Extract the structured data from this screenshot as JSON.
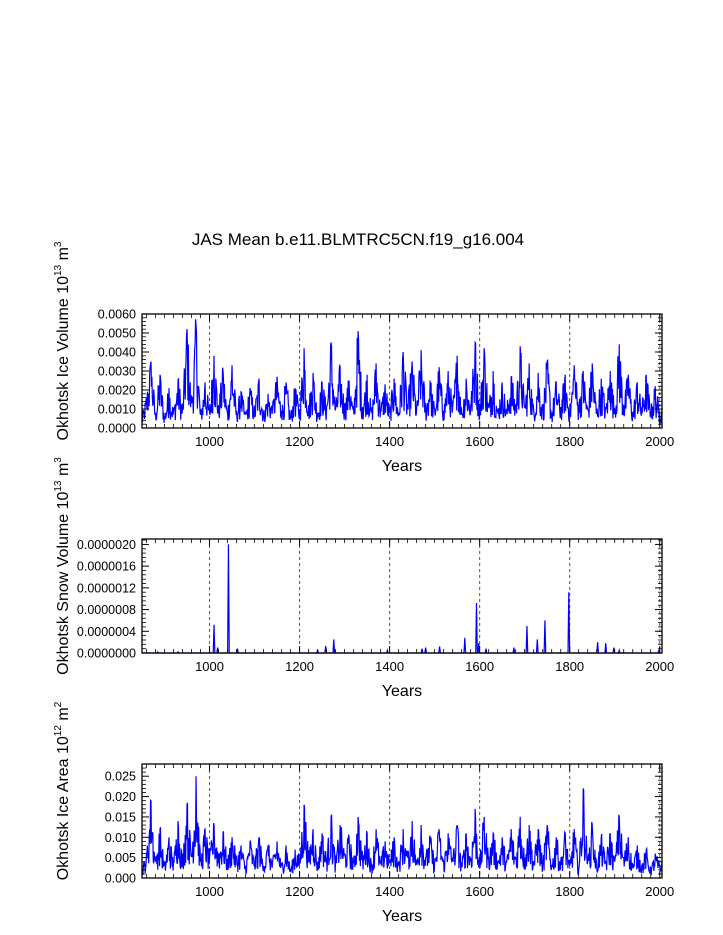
{
  "figure_title": "JAS Mean b.e11.BLMTRC5CN.f19_g16.004",
  "chart_data": [
    {
      "type": "line",
      "title": "JAS Mean b.e11.BLMTRC5CN.f19_g16.004",
      "xlabel": "Years",
      "ylabel": "Okhotsk Ice Volume 10",
      "ylabel_exp": "13",
      "ylabel_unit": "m",
      "ylabel_unit_exp": "3",
      "xlim": [
        850,
        2005
      ],
      "ylim": [
        0,
        0.006
      ],
      "xticks": [
        1000,
        1200,
        1400,
        1600,
        1800,
        2000
      ],
      "xtick_labels": [
        "1000",
        "1200",
        "1400",
        "1600",
        "1800",
        "2000"
      ],
      "yticks": [
        0,
        0.001,
        0.002,
        0.003,
        0.004,
        0.005,
        0.006
      ],
      "ytick_labels": [
        "0.0000",
        "0.0010",
        "0.0020",
        "0.0030",
        "0.0040",
        "0.0050",
        "0.0060"
      ],
      "grid_x": [
        1000,
        1200,
        1400,
        1600,
        1800,
        2000
      ],
      "color": "#0000ff",
      "x": [
        850,
        860,
        870,
        880,
        890,
        900,
        910,
        920,
        930,
        940,
        950,
        960,
        970,
        980,
        990,
        1000,
        1010,
        1020,
        1030,
        1040,
        1050,
        1060,
        1070,
        1080,
        1090,
        1100,
        1110,
        1120,
        1130,
        1140,
        1150,
        1160,
        1170,
        1180,
        1190,
        1200,
        1210,
        1220,
        1230,
        1240,
        1250,
        1260,
        1270,
        1280,
        1290,
        1300,
        1310,
        1320,
        1330,
        1340,
        1350,
        1360,
        1370,
        1380,
        1390,
        1400,
        1410,
        1420,
        1430,
        1440,
        1450,
        1460,
        1470,
        1480,
        1490,
        1500,
        1510,
        1520,
        1530,
        1540,
        1550,
        1560,
        1570,
        1580,
        1590,
        1600,
        1610,
        1620,
        1630,
        1640,
        1650,
        1660,
        1670,
        1680,
        1690,
        1700,
        1710,
        1720,
        1730,
        1740,
        1750,
        1760,
        1770,
        1780,
        1790,
        1800,
        1810,
        1820,
        1830,
        1840,
        1850,
        1860,
        1870,
        1880,
        1890,
        1900,
        1910,
        1920,
        1930,
        1940,
        1950,
        1960,
        1970,
        1980,
        1990,
        2000,
        2005
      ],
      "values": [
        0.0005,
        0.0016,
        0.0035,
        0.0008,
        0.0028,
        0.0006,
        0.0021,
        0.0009,
        0.0025,
        0.0011,
        0.0052,
        0.0013,
        0.0054,
        0.0007,
        0.0024,
        0.001,
        0.0038,
        0.0012,
        0.003,
        0.0008,
        0.0033,
        0.0009,
        0.0019,
        0.0007,
        0.0021,
        0.001,
        0.0026,
        0.0008,
        0.0018,
        0.0011,
        0.0027,
        0.0009,
        0.0024,
        0.0006,
        0.0021,
        0.001,
        0.0042,
        0.0012,
        0.0029,
        0.0008,
        0.0024,
        0.0011,
        0.0045,
        0.001,
        0.0032,
        0.0012,
        0.0025,
        0.0009,
        0.0051,
        0.0011,
        0.0028,
        0.0008,
        0.0034,
        0.001,
        0.0023,
        0.0009,
        0.0026,
        0.0008,
        0.004,
        0.0012,
        0.0035,
        0.001,
        0.0041,
        0.0011,
        0.0025,
        0.001,
        0.0032,
        0.0009,
        0.003,
        0.0011,
        0.0038,
        0.0008,
        0.0026,
        0.0012,
        0.0045,
        0.001,
        0.0042,
        0.0011,
        0.003,
        0.0009,
        0.0024,
        0.001,
        0.0027,
        0.0012,
        0.0043,
        0.0011,
        0.0034,
        0.0009,
        0.0029,
        0.001,
        0.0035,
        0.0008,
        0.0024,
        0.0011,
        0.0028,
        0.0009,
        0.0033,
        0.0012,
        0.003,
        0.001,
        0.0034,
        0.0009,
        0.0026,
        0.0011,
        0.003,
        0.001,
        0.0044,
        0.0012,
        0.0028,
        0.0008,
        0.0024,
        0.0011,
        0.0028,
        0.0009,
        0.0022,
        0.0008,
        0.001
      ]
    },
    {
      "type": "line",
      "xlabel": "Years",
      "ylabel": "Okhotsk Snow Volume 10",
      "ylabel_exp": "13",
      "ylabel_unit": "m",
      "ylabel_unit_exp": "3",
      "xlim": [
        850,
        2005
      ],
      "ylim": [
        0,
        2.1e-06
      ],
      "xticks": [
        1000,
        1200,
        1400,
        1600,
        1800,
        2000
      ],
      "xtick_labels": [
        "1000",
        "1200",
        "1400",
        "1600",
        "1800",
        "2000"
      ],
      "yticks": [
        0,
        4e-07,
        8e-07,
        1.2e-06,
        1.6e-06,
        2e-06
      ],
      "ytick_labels": [
        "0.0000000",
        "0.0000004",
        "0.0000008",
        "0.0000012",
        "0.0000016",
        "0.0000020"
      ],
      "grid_x": [
        1000,
        1200,
        1400,
        1600,
        1800,
        2000
      ],
      "color": "#0000ff",
      "spikes": [
        {
          "x": 885,
          "y": 2e-08
        },
        {
          "x": 930,
          "y": 2e-08
        },
        {
          "x": 1010,
          "y": 5.2e-07
        },
        {
          "x": 1018,
          "y": 1e-07
        },
        {
          "x": 1042,
          "y": 2e-06
        },
        {
          "x": 1062,
          "y": 8e-08
        },
        {
          "x": 1240,
          "y": 6e-08
        },
        {
          "x": 1258,
          "y": 1.3e-07
        },
        {
          "x": 1276,
          "y": 2.5e-07
        },
        {
          "x": 1395,
          "y": 5e-08
        },
        {
          "x": 1472,
          "y": 8e-08
        },
        {
          "x": 1480,
          "y": 1e-07
        },
        {
          "x": 1511,
          "y": 1.2e-07
        },
        {
          "x": 1567,
          "y": 2.8e-07
        },
        {
          "x": 1593,
          "y": 9.2e-07
        },
        {
          "x": 1598,
          "y": 1.8e-07
        },
        {
          "x": 1614,
          "y": 8e-08
        },
        {
          "x": 1676,
          "y": 1e-07
        },
        {
          "x": 1705,
          "y": 5e-07
        },
        {
          "x": 1728,
          "y": 2.5e-07
        },
        {
          "x": 1745,
          "y": 6e-07
        },
        {
          "x": 1798,
          "y": 1.12e-06
        },
        {
          "x": 1862,
          "y": 2e-07
        },
        {
          "x": 1880,
          "y": 1.8e-07
        },
        {
          "x": 1898,
          "y": 1e-07
        },
        {
          "x": 1910,
          "y": 5e-08
        },
        {
          "x": 1998,
          "y": 6e-08
        }
      ]
    },
    {
      "type": "line",
      "xlabel": "Years",
      "ylabel": "Okhotsk Ice Area 10",
      "ylabel_exp": "12",
      "ylabel_unit": "m",
      "ylabel_unit_exp": "2",
      "xlim": [
        850,
        2005
      ],
      "ylim": [
        0,
        0.028
      ],
      "xticks": [
        1000,
        1200,
        1400,
        1600,
        1800,
        2000
      ],
      "xtick_labels": [
        "1000",
        "1200",
        "1400",
        "1600",
        "1800",
        "2000"
      ],
      "yticks": [
        0,
        0.005,
        0.01,
        0.015,
        0.02,
        0.025
      ],
      "ytick_labels": [
        "0.000",
        "0.005",
        "0.010",
        "0.015",
        "0.020",
        "0.025"
      ],
      "grid_x": [
        1000,
        1200,
        1400,
        1600,
        1800,
        2000
      ],
      "color": "#0000ff",
      "x": [
        850,
        860,
        870,
        880,
        890,
        900,
        910,
        920,
        930,
        940,
        950,
        960,
        970,
        980,
        990,
        1000,
        1010,
        1020,
        1030,
        1040,
        1050,
        1060,
        1070,
        1080,
        1090,
        1100,
        1110,
        1120,
        1130,
        1140,
        1150,
        1160,
        1170,
        1180,
        1190,
        1200,
        1210,
        1220,
        1230,
        1240,
        1250,
        1260,
        1270,
        1280,
        1290,
        1300,
        1310,
        1320,
        1330,
        1340,
        1350,
        1360,
        1370,
        1380,
        1390,
        1400,
        1410,
        1420,
        1430,
        1440,
        1450,
        1460,
        1470,
        1480,
        1490,
        1500,
        1510,
        1520,
        1530,
        1540,
        1550,
        1560,
        1570,
        1580,
        1590,
        1600,
        1610,
        1620,
        1630,
        1640,
        1650,
        1660,
        1670,
        1680,
        1690,
        1700,
        1710,
        1720,
        1730,
        1740,
        1750,
        1760,
        1770,
        1780,
        1790,
        1800,
        1810,
        1820,
        1830,
        1840,
        1850,
        1860,
        1870,
        1880,
        1890,
        1900,
        1910,
        1920,
        1930,
        1940,
        1950,
        1960,
        1970,
        1980,
        1990,
        2000,
        2005
      ],
      "values": [
        0.002,
        0.006,
        0.019,
        0.004,
        0.012,
        0.003,
        0.01,
        0.004,
        0.014,
        0.005,
        0.018,
        0.006,
        0.025,
        0.004,
        0.012,
        0.005,
        0.013,
        0.006,
        0.011,
        0.004,
        0.01,
        0.005,
        0.008,
        0.003,
        0.009,
        0.004,
        0.01,
        0.003,
        0.008,
        0.004,
        0.009,
        0.003,
        0.008,
        0.002,
        0.007,
        0.005,
        0.018,
        0.006,
        0.012,
        0.004,
        0.011,
        0.005,
        0.015,
        0.004,
        0.013,
        0.006,
        0.01,
        0.004,
        0.015,
        0.005,
        0.011,
        0.003,
        0.012,
        0.004,
        0.009,
        0.004,
        0.01,
        0.003,
        0.012,
        0.005,
        0.014,
        0.004,
        0.013,
        0.005,
        0.01,
        0.004,
        0.012,
        0.004,
        0.011,
        0.005,
        0.013,
        0.003,
        0.011,
        0.005,
        0.017,
        0.004,
        0.015,
        0.005,
        0.011,
        0.004,
        0.01,
        0.004,
        0.012,
        0.005,
        0.015,
        0.005,
        0.013,
        0.004,
        0.012,
        0.004,
        0.013,
        0.003,
        0.01,
        0.004,
        0.011,
        0.003,
        0.012,
        0.002,
        0.022,
        0.004,
        0.013,
        0.003,
        0.01,
        0.004,
        0.011,
        0.004,
        0.015,
        0.005,
        0.01,
        0.003,
        0.008,
        0.003,
        0.007,
        0.002,
        0.006,
        0.003,
        0.004
      ]
    }
  ]
}
